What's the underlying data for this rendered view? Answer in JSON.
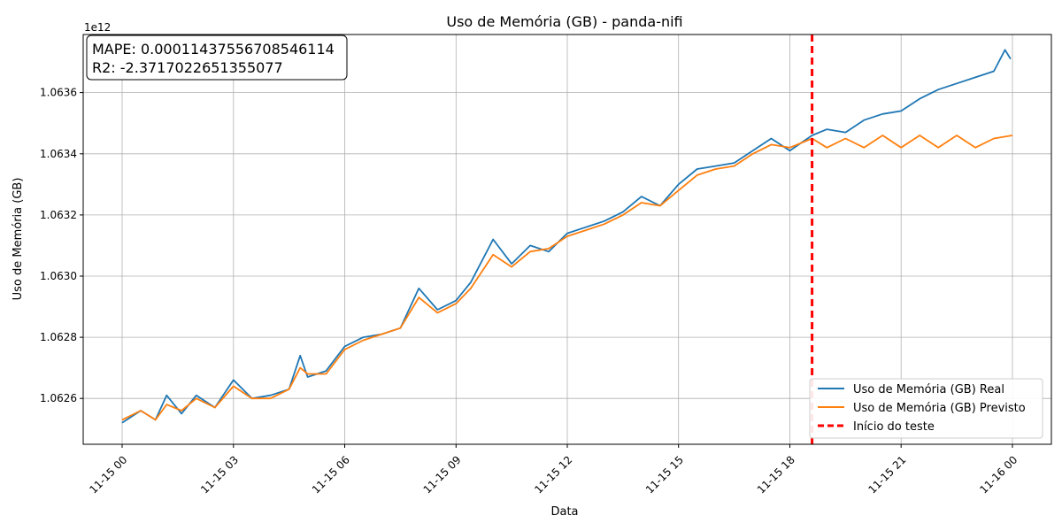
{
  "chart_data": {
    "type": "line",
    "title": "Uso de Memória (GB) - panda-nifi",
    "xlabel": "Data",
    "ylabel": "Uso de Memória (GB)",
    "y_offset_label": "1e12",
    "y_tick_values": [
      1.0626,
      1.0628,
      1.063,
      1.0632,
      1.0634,
      1.0636
    ],
    "y_tick_labels": [
      "1.0626",
      "1.0628",
      "1.0630",
      "1.0632",
      "1.0634",
      "1.0636"
    ],
    "ylim": [
      1.06245,
      1.06379
    ],
    "xlim_hours": [
      -1.05,
      25.05
    ],
    "x_tick_hours": [
      0,
      3,
      6,
      9,
      12,
      15,
      18,
      21,
      24
    ],
    "x_tick_labels": [
      "11-15 00",
      "11-15 03",
      "11-15 06",
      "11-15 09",
      "11-15 12",
      "11-15 15",
      "11-15 18",
      "11-15 21",
      "11-16 00"
    ],
    "grid": true,
    "legend_position": "lower-right",
    "metrics": {
      "mape": "MAPE: 0.00011437556708546114",
      "r2": "R2: -2.3717022651355077"
    },
    "test_start_hour": 18.6,
    "series": [
      {
        "name": "Uso de Memória (GB) Real",
        "color": "#1f77b4",
        "points": [
          [
            0.0,
            1.06252
          ],
          [
            0.5,
            1.06256
          ],
          [
            0.9,
            1.06253
          ],
          [
            1.2,
            1.06261
          ],
          [
            1.6,
            1.06255
          ],
          [
            2.0,
            1.06261
          ],
          [
            2.5,
            1.06257
          ],
          [
            3.0,
            1.06266
          ],
          [
            3.5,
            1.0626
          ],
          [
            4.0,
            1.06261
          ],
          [
            4.5,
            1.06263
          ],
          [
            4.8,
            1.06274
          ],
          [
            5.0,
            1.06267
          ],
          [
            5.5,
            1.06269
          ],
          [
            6.0,
            1.06277
          ],
          [
            6.5,
            1.0628
          ],
          [
            7.0,
            1.06281
          ],
          [
            7.5,
            1.06283
          ],
          [
            8.0,
            1.06296
          ],
          [
            8.5,
            1.06289
          ],
          [
            9.0,
            1.06292
          ],
          [
            9.4,
            1.06298
          ],
          [
            10.0,
            1.06312
          ],
          [
            10.5,
            1.06304
          ],
          [
            11.0,
            1.0631
          ],
          [
            11.5,
            1.06308
          ],
          [
            12.0,
            1.06314
          ],
          [
            12.5,
            1.06316
          ],
          [
            13.0,
            1.06318
          ],
          [
            13.5,
            1.06321
          ],
          [
            14.0,
            1.06326
          ],
          [
            14.5,
            1.06323
          ],
          [
            15.0,
            1.0633
          ],
          [
            15.5,
            1.06335
          ],
          [
            16.0,
            1.06336
          ],
          [
            16.5,
            1.06337
          ],
          [
            17.0,
            1.06341
          ],
          [
            17.5,
            1.06345
          ],
          [
            18.0,
            1.06341
          ],
          [
            18.6,
            1.06346
          ],
          [
            19.0,
            1.06348
          ],
          [
            19.5,
            1.06347
          ],
          [
            20.0,
            1.06351
          ],
          [
            20.5,
            1.06353
          ],
          [
            21.0,
            1.06354
          ],
          [
            21.5,
            1.06358
          ],
          [
            22.0,
            1.06361
          ],
          [
            22.5,
            1.06363
          ],
          [
            23.0,
            1.06365
          ],
          [
            23.5,
            1.06367
          ],
          [
            23.8,
            1.06374
          ],
          [
            23.95,
            1.06371
          ]
        ]
      },
      {
        "name": "Uso de Memória (GB) Previsto",
        "color": "#ff7f0e",
        "points": [
          [
            0.0,
            1.06253
          ],
          [
            0.5,
            1.06256
          ],
          [
            0.9,
            1.06253
          ],
          [
            1.2,
            1.06258
          ],
          [
            1.6,
            1.06256
          ],
          [
            2.0,
            1.0626
          ],
          [
            2.5,
            1.06257
          ],
          [
            3.0,
            1.06264
          ],
          [
            3.5,
            1.0626
          ],
          [
            4.0,
            1.0626
          ],
          [
            4.5,
            1.06263
          ],
          [
            4.8,
            1.0627
          ],
          [
            5.0,
            1.06268
          ],
          [
            5.5,
            1.06268
          ],
          [
            6.0,
            1.06276
          ],
          [
            6.5,
            1.06279
          ],
          [
            7.0,
            1.06281
          ],
          [
            7.5,
            1.06283
          ],
          [
            8.0,
            1.06293
          ],
          [
            8.5,
            1.06288
          ],
          [
            9.0,
            1.06291
          ],
          [
            9.4,
            1.06296
          ],
          [
            10.0,
            1.06307
          ],
          [
            10.5,
            1.06303
          ],
          [
            11.0,
            1.06308
          ],
          [
            11.5,
            1.06309
          ],
          [
            12.0,
            1.06313
          ],
          [
            12.5,
            1.06315
          ],
          [
            13.0,
            1.06317
          ],
          [
            13.5,
            1.0632
          ],
          [
            14.0,
            1.06324
          ],
          [
            14.5,
            1.06323
          ],
          [
            15.0,
            1.06328
          ],
          [
            15.5,
            1.06333
          ],
          [
            16.0,
            1.06335
          ],
          [
            16.5,
            1.06336
          ],
          [
            17.0,
            1.0634
          ],
          [
            17.5,
            1.06343
          ],
          [
            18.0,
            1.06342
          ],
          [
            18.6,
            1.06345
          ],
          [
            19.0,
            1.06342
          ],
          [
            19.5,
            1.06345
          ],
          [
            20.0,
            1.06342
          ],
          [
            20.5,
            1.06346
          ],
          [
            21.0,
            1.06342
          ],
          [
            21.5,
            1.06346
          ],
          [
            22.0,
            1.06342
          ],
          [
            22.5,
            1.06346
          ],
          [
            23.0,
            1.06342
          ],
          [
            23.5,
            1.06345
          ],
          [
            24.0,
            1.06346
          ]
        ]
      }
    ],
    "test_marker": {
      "name": "Início do teste",
      "color": "#ff0000"
    }
  }
}
